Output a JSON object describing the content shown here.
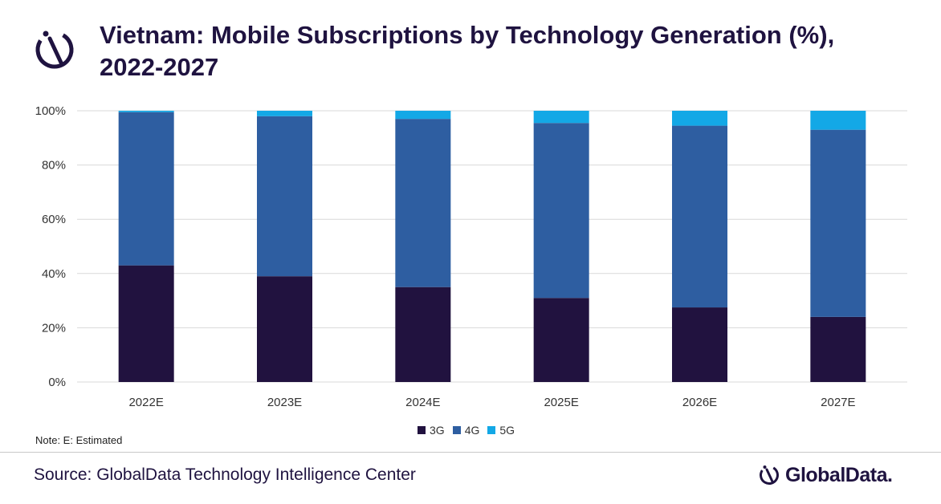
{
  "title": "Vietnam: Mobile Subscriptions by Technology Generation (%), 2022-2027",
  "note": "Note:  E: Estimated",
  "source": "Source: GlobalData Technology Intelligence Center",
  "brand": "GlobalData.",
  "logo_icon": "globaldata-logo-icon",
  "colors": {
    "3G": "#21123f",
    "4G": "#2e5ea1",
    "5G": "#13a8e6",
    "grid": "#d9d9d9",
    "title": "#1f1340"
  },
  "chart_data": {
    "type": "bar",
    "stacked": true,
    "categories": [
      "2022E",
      "2023E",
      "2024E",
      "2025E",
      "2026E",
      "2027E"
    ],
    "series": [
      {
        "name": "3G",
        "values": [
          43,
          39,
          35,
          31,
          27.5,
          24
        ]
      },
      {
        "name": "4G",
        "values": [
          56.5,
          59,
          62,
          64.5,
          67,
          69
        ]
      },
      {
        "name": "5G",
        "values": [
          0.5,
          2,
          3,
          4.5,
          5.5,
          7
        ]
      }
    ],
    "y_ticks": [
      "0%",
      "20%",
      "40%",
      "60%",
      "80%",
      "100%"
    ],
    "ylim": [
      0,
      100
    ],
    "grid": true,
    "legend": "bottom-center"
  }
}
